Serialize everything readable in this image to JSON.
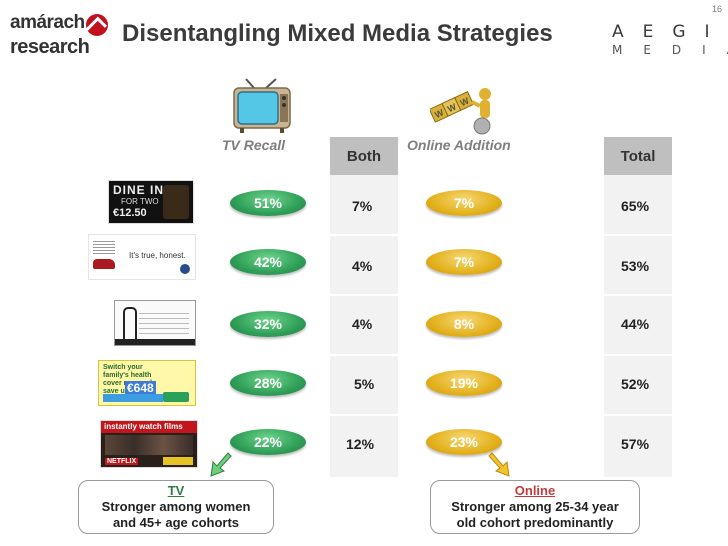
{
  "page_number": "16",
  "left_logo": {
    "line1": "amárach",
    "line2": "research"
  },
  "title": "Disentangling Mixed Media Strategies",
  "right_logo": {
    "line1": "AEGIS",
    "line2": "MEDIA"
  },
  "headers": {
    "tv_recall": "TV Recall",
    "both": "Both",
    "online_addition": "Online Addition",
    "total": "Total"
  },
  "rows": [
    {
      "ad": "dine-in-ad",
      "ad_text": [
        "DINE IN",
        "FOR TWO",
        "€12.50"
      ],
      "tv_recall": "51%",
      "both": "7%",
      "online_addition": "7%",
      "total": "65%"
    },
    {
      "ad": "vw-ad",
      "ad_text": [
        "It's true, honest."
      ],
      "tv_recall": "42%",
      "both": "4%",
      "online_addition": "7%",
      "total": "53%"
    },
    {
      "ad": "fashion-ad",
      "ad_text": [],
      "tv_recall": "32%",
      "both": "4%",
      "online_addition": "8%",
      "total": "44%"
    },
    {
      "ad": "health-cover-ad",
      "ad_text": [
        "Switch your family's health cover now and save up to",
        "€648"
      ],
      "tv_recall": "28%",
      "both": "5%",
      "online_addition": "19%",
      "total": "52%"
    },
    {
      "ad": "netflix-ad",
      "ad_text": [
        "instantly watch films",
        "NETFLIX"
      ],
      "tv_recall": "22%",
      "both": "12%",
      "online_addition": "23%",
      "total": "57%"
    }
  ],
  "callouts": {
    "tv": {
      "heading": "TV",
      "line1": "Stronger among women",
      "line2": "and 45+ age cohorts"
    },
    "online": {
      "heading": "Online",
      "line1": "Stronger among 25-34 year",
      "line2": "old cohort predominantly"
    }
  },
  "icons": {
    "tv": "tv-icon",
    "web": "www-icon"
  },
  "colors": {
    "tv_pill": "#2f9f57",
    "online_pill": "#e3b11d",
    "column_bg": "#f2f2f2",
    "column_head": "#bfbfbf"
  }
}
